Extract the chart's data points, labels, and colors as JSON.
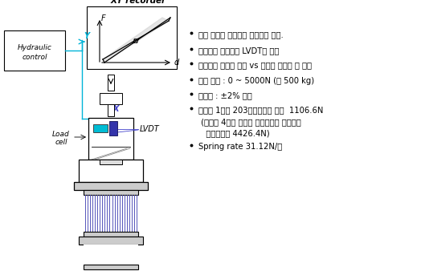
{
  "background_color": "#ffffff",
  "bullet_points": [
    "유압 잭으로 스프링에 압축력을 가함.",
    "스프링의 변형량을 LVDT로 측정",
    "스프링에 가하는 하중 vs 변형량 모니터 및 기록",
    "측정 범위 : 0 ~ 5000N (약 500 kg)",
    "정밀도 : ±2% 이하",
    "스프링 1개당 203㎊위치에서 하중  1106.6N",
    " (스프링 4개가 조립된 상단고정체 상태에서",
    "   검사하므로 4426.4N)",
    "Spring rate 31.12N/㎜"
  ],
  "bullet_flags": [
    true,
    true,
    true,
    true,
    true,
    true,
    false,
    false,
    true
  ],
  "text_color": "#000000",
  "diagram_color": "#000000",
  "cyan_color": "#00b4d8",
  "blue_label_color": "#4444cc",
  "spring_color": "#5555bb"
}
